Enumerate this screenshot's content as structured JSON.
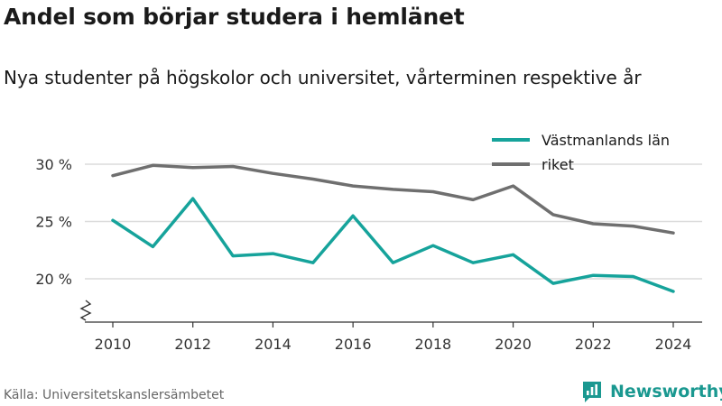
{
  "header": {
    "title": "Andel som börjar studera i hemlänet",
    "subtitle": "Nya studenter på högskolor och universitet, vårterminen respektive år"
  },
  "footer": {
    "source": "Källa: Universitetskanslersämbetet",
    "brand": "Newsworthy",
    "brand_icon": "newsworthy-logo-icon"
  },
  "colors": {
    "Västmanlands län": "#16a39b",
    "riket": "#6f6f6f",
    "grid": "#dcdcdc",
    "axis": "#333333"
  },
  "chart_data": {
    "type": "line",
    "title": "Andel som börjar studera i hemlänet",
    "subtitle": "Nya studenter på högskolor och universitet, vårterminen respektive år",
    "x": [
      2010,
      2011,
      2012,
      2013,
      2014,
      2015,
      2016,
      2017,
      2018,
      2019,
      2020,
      2021,
      2022,
      2023,
      2024
    ],
    "x_ticks": [
      2010,
      2012,
      2014,
      2016,
      2018,
      2020,
      2022,
      2024
    ],
    "x_tick_labels": [
      "2010",
      "2012",
      "2014",
      "2016",
      "2018",
      "2020",
      "2022",
      "2024"
    ],
    "y_ticks": [
      20,
      25,
      30
    ],
    "y_tick_labels": [
      "20 %",
      "25 %",
      "30 %"
    ],
    "ylim": [
      16,
      31
    ],
    "y_axis_break": true,
    "grid": true,
    "legend_position": "top-right",
    "series": [
      {
        "name": "Västmanlands län",
        "values": [
          25.1,
          22.8,
          27.0,
          22.0,
          22.2,
          21.4,
          25.5,
          21.4,
          22.9,
          21.4,
          22.1,
          19.6,
          20.3,
          20.2,
          18.9
        ]
      },
      {
        "name": "riket",
        "values": [
          29.0,
          29.9,
          29.7,
          29.8,
          29.2,
          28.7,
          28.1,
          27.8,
          27.6,
          26.9,
          28.1,
          25.6,
          24.8,
          24.6,
          24.0
        ]
      }
    ]
  }
}
